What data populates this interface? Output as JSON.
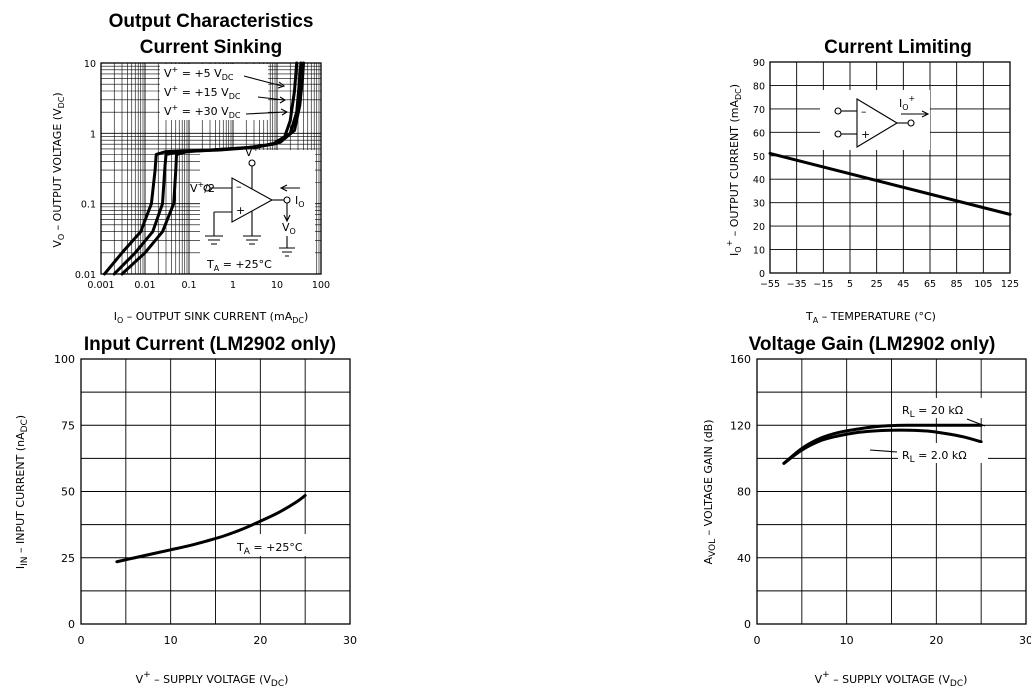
{
  "chart_data": [
    {
      "id": "sink",
      "type": "line",
      "title": "Output Characteristics",
      "subtitle": "Current Sinking",
      "xlabel": "I_O - OUTPUT SINK CURRENT (mA_DC)",
      "ylabel": "V_O - OUTPUT VOLTAGE (V_DC)",
      "x_scale": "log",
      "y_scale": "log",
      "xlim": [
        0.001,
        100
      ],
      "ylim": [
        0.01,
        10
      ],
      "x_ticks": [
        "0.001",
        "0.01",
        "0.1",
        "1",
        "10",
        "100"
      ],
      "y_ticks": [
        "0.01",
        "0.1",
        "1",
        "10"
      ],
      "grid": true,
      "annotations": [
        "V+ = +5 V_DC",
        "V+ = +15 V_DC",
        "V+ = +30 V_DC",
        "V+/2",
        "V+",
        "I_O",
        "V_O",
        "T_A = +25°C"
      ],
      "series": [
        {
          "name": "V+ = +5 V_DC",
          "points": [
            [
              0.0012,
              0.01
            ],
            [
              0.003,
              0.02
            ],
            [
              0.008,
              0.04
            ],
            [
              0.014,
              0.1
            ],
            [
              0.017,
              0.3
            ],
            [
              0.018,
              0.5
            ],
            [
              0.03,
              0.55
            ],
            [
              0.3,
              0.58
            ],
            [
              2,
              0.62
            ],
            [
              8,
              0.7
            ],
            [
              15,
              0.9
            ],
            [
              20,
              1.5
            ],
            [
              25,
              4
            ],
            [
              28,
              10
            ]
          ]
        },
        {
          "name": "V+ = +15 V_DC",
          "points": [
            [
              0.002,
              0.01
            ],
            [
              0.006,
              0.02
            ],
            [
              0.015,
              0.04
            ],
            [
              0.025,
              0.1
            ],
            [
              0.028,
              0.3
            ],
            [
              0.03,
              0.5
            ],
            [
              0.06,
              0.55
            ],
            [
              0.5,
              0.58
            ],
            [
              3,
              0.63
            ],
            [
              10,
              0.72
            ],
            [
              20,
              1.0
            ],
            [
              28,
              2
            ],
            [
              32,
              5
            ],
            [
              35,
              10
            ]
          ]
        },
        {
          "name": "V+ = +30 V_DC",
          "points": [
            [
              0.003,
              0.01
            ],
            [
              0.01,
              0.02
            ],
            [
              0.025,
              0.04
            ],
            [
              0.045,
              0.1
            ],
            [
              0.05,
              0.3
            ],
            [
              0.052,
              0.5
            ],
            [
              0.09,
              0.55
            ],
            [
              0.8,
              0.6
            ],
            [
              4,
              0.65
            ],
            [
              12,
              0.75
            ],
            [
              25,
              1.1
            ],
            [
              33,
              2.5
            ],
            [
              38,
              6
            ],
            [
              40,
              10
            ]
          ]
        }
      ]
    },
    {
      "id": "limit",
      "type": "line",
      "title": "Current Limiting",
      "xlabel": "T_A - TEMPERATURE (°C)",
      "ylabel": "I_O+ - OUTPUT CURRENT (mA_DC)",
      "xlim": [
        -55,
        125
      ],
      "ylim": [
        0,
        90
      ],
      "x_ticks": [
        "-55",
        "-35",
        "-15",
        "5",
        "25",
        "45",
        "65",
        "85",
        "105",
        "125"
      ],
      "y_ticks": [
        "0",
        "10",
        "20",
        "30",
        "40",
        "50",
        "60",
        "70",
        "80",
        "90"
      ],
      "grid": true,
      "annotations": [
        "I_O+"
      ],
      "series": [
        {
          "name": "",
          "points": [
            [
              -55,
              51
            ],
            [
              125,
              25
            ]
          ]
        }
      ]
    },
    {
      "id": "input",
      "type": "line",
      "title": "Input Current (LM2902 only)",
      "xlabel": "V+ - SUPPLY VOLTAGE (V_DC)",
      "ylabel": "I_IN - INPUT CURRENT (nA_DC)",
      "xlim": [
        0,
        30
      ],
      "ylim": [
        0,
        100
      ],
      "x_ticks": [
        "0",
        "10",
        "20",
        "30"
      ],
      "y_ticks": [
        "0",
        "25",
        "50",
        "75",
        "100"
      ],
      "grid": true,
      "annotations": [
        "T_A = +25°C"
      ],
      "series": [
        {
          "name": "",
          "points": [
            [
              4,
              23.5
            ],
            [
              6,
              25
            ],
            [
              8,
              26.5
            ],
            [
              10,
              28
            ],
            [
              12,
              29.5
            ],
            [
              14,
              31.3
            ],
            [
              16,
              33.3
            ],
            [
              18,
              35.8
            ],
            [
              20,
              38.8
            ],
            [
              22,
              42
            ],
            [
              24,
              46
            ],
            [
              25,
              48.5
            ]
          ]
        }
      ]
    },
    {
      "id": "gain",
      "type": "line",
      "title": "Voltage Gain (LM2902 only)",
      "xlabel": "V+ - SUPPLY VOLTAGE (V_DC)",
      "ylabel": "A_VOL - VOLTAGE GAIN (dB)",
      "xlim": [
        0,
        30
      ],
      "ylim": [
        0,
        160
      ],
      "x_ticks": [
        "0",
        "10",
        "20",
        "30"
      ],
      "y_ticks": [
        "0",
        "40",
        "80",
        "120",
        "160"
      ],
      "grid": true,
      "annotations": [
        "R_L = 20 kΩ",
        "R_L = 2.0 kΩ"
      ],
      "series": [
        {
          "name": "R_L = 20 kΩ",
          "points": [
            [
              3,
              97
            ],
            [
              5,
              106
            ],
            [
              7,
              112
            ],
            [
              9,
              115.5
            ],
            [
              11,
              117.5
            ],
            [
              13,
              119
            ],
            [
              15,
              119.8
            ],
            [
              17,
              120
            ],
            [
              20,
              120
            ],
            [
              25,
              120
            ]
          ]
        },
        {
          "name": "R_L = 2.0 kΩ",
          "points": [
            [
              3,
              97
            ],
            [
              5,
              105
            ],
            [
              7,
              110.5
            ],
            [
              9,
              113.5
            ],
            [
              11,
              115.5
            ],
            [
              13,
              116.5
            ],
            [
              15,
              117
            ],
            [
              17,
              117
            ],
            [
              19,
              116.5
            ],
            [
              21,
              115
            ],
            [
              23,
              113
            ],
            [
              25,
              110
            ]
          ]
        }
      ]
    }
  ]
}
